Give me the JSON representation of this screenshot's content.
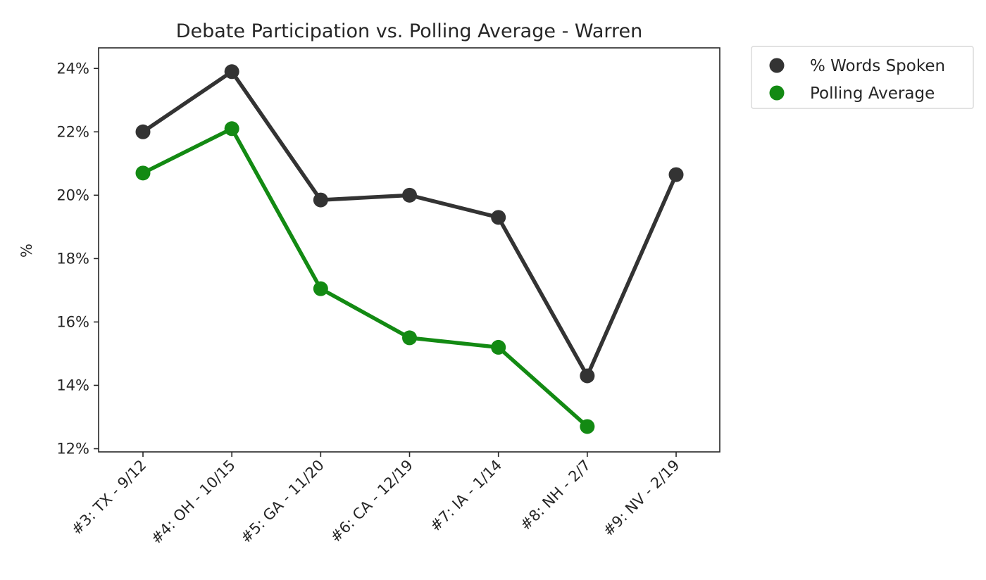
{
  "chart_data": {
    "type": "line",
    "title": "Debate Participation vs. Polling Average - Warren",
    "xlabel": "",
    "ylabel": "%",
    "categories": [
      "#3: TX - 9/12",
      "#4: OH - 10/15",
      "#5: GA - 11/20",
      "#6: CA - 12/19",
      "#7: IA - 1/14",
      "#8: NH - 2/7",
      "#9: NV - 2/19"
    ],
    "ylim": [
      11.9,
      24.65
    ],
    "yticks": [
      12,
      14,
      16,
      18,
      20,
      22,
      24
    ],
    "ytick_labels": [
      "12%",
      "14%",
      "16%",
      "18%",
      "20%",
      "22%",
      "24%"
    ],
    "grid": false,
    "legend_position": "outside-top-right",
    "series": [
      {
        "name": "% Words Spoken",
        "color": "#333333",
        "values": [
          22.0,
          23.9,
          19.85,
          20.0,
          19.3,
          14.3,
          20.65
        ]
      },
      {
        "name": "Polling Average",
        "color": "#138a13",
        "values": [
          20.7,
          22.1,
          17.05,
          15.5,
          15.2,
          12.7,
          null
        ]
      }
    ]
  }
}
